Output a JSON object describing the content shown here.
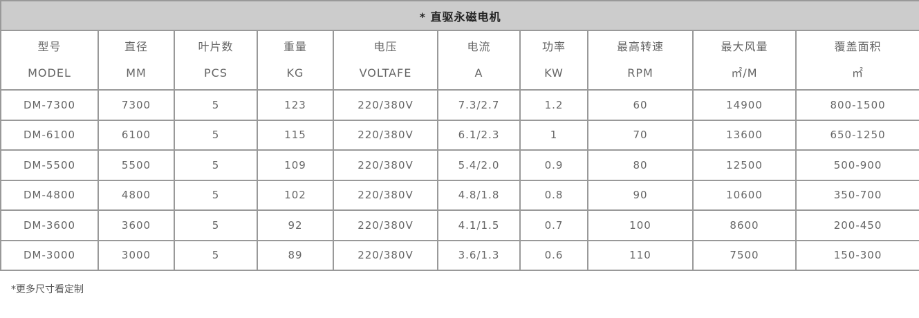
{
  "title": "* 直驱永磁电机",
  "headers": [
    {
      "cn": "型号",
      "en": "MODEL"
    },
    {
      "cn": "直径",
      "en": "MM"
    },
    {
      "cn": "叶片数",
      "en": "PCS"
    },
    {
      "cn": "重量",
      "en": "KG"
    },
    {
      "cn": "电压",
      "en": "VOLTAFE"
    },
    {
      "cn": "电流",
      "en": "A"
    },
    {
      "cn": "功率",
      "en": "KW"
    },
    {
      "cn": "最高转速",
      "en": "RPM"
    },
    {
      "cn": "最大风量",
      "en": "㎡/M"
    },
    {
      "cn": "覆盖面积",
      "en": "㎡"
    }
  ],
  "rows": [
    [
      "DM-7300",
      "7300",
      "5",
      "123",
      "220/380V",
      "7.3/2.7",
      "1.2",
      "60",
      "14900",
      "800-1500"
    ],
    [
      "DM-6100",
      "6100",
      "5",
      "115",
      "220/380V",
      "6.1/2.3",
      "1",
      "70",
      "13600",
      "650-1250"
    ],
    [
      "DM-5500",
      "5500",
      "5",
      "109",
      "220/380V",
      "5.4/2.0",
      "0.9",
      "80",
      "12500",
      "500-900"
    ],
    [
      "DM-4800",
      "4800",
      "5",
      "102",
      "220/380V",
      "4.8/1.8",
      "0.8",
      "90",
      "10600",
      "350-700"
    ],
    [
      "DM-3600",
      "3600",
      "5",
      "92",
      "220/380V",
      "4.1/1.5",
      "0.7",
      "100",
      "8600",
      "200-450"
    ],
    [
      "DM-3000",
      "3000",
      "5",
      "89",
      "220/380V",
      "3.6/1.3",
      "0.6",
      "110",
      "7500",
      "150-300"
    ]
  ],
  "footnote": "*更多尺寸看定制"
}
